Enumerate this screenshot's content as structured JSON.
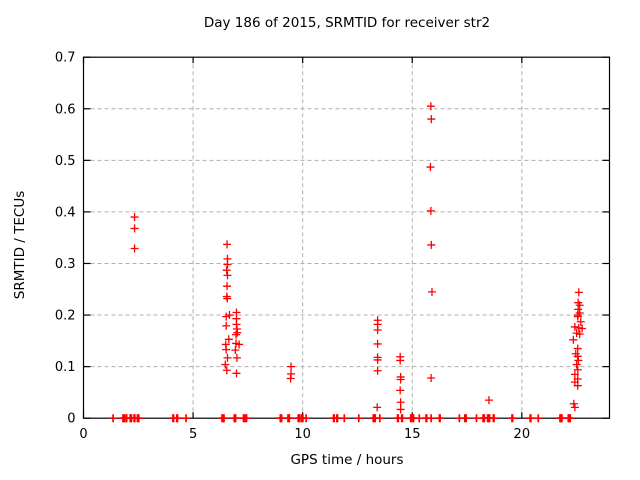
{
  "chart_data": {
    "type": "scatter",
    "title": "Day 186 of 2015, SRMTID for receiver str2",
    "xlabel": "GPS time / hours",
    "ylabel": "SRMTID / TECUs",
    "xlim": [
      0,
      24
    ],
    "ylim": [
      0,
      0.7
    ],
    "xticks": [
      0,
      5,
      10,
      15,
      20
    ],
    "yticks": [
      0,
      0.1,
      0.2,
      0.3,
      0.4,
      0.5,
      0.6,
      0.7
    ],
    "grid": true,
    "legend": "none",
    "marker": {
      "shape": "plus",
      "color": "#ff0000"
    },
    "grid_color": "#b0b0b0",
    "border_color": "#000000",
    "series": [
      {
        "name": "SRMTID",
        "points": [
          [
            2.33,
            0.39
          ],
          [
            2.33,
            0.368
          ],
          [
            2.33,
            0.329
          ],
          [
            6.55,
            0.337
          ],
          [
            6.57,
            0.309
          ],
          [
            6.57,
            0.298
          ],
          [
            6.53,
            0.287
          ],
          [
            6.57,
            0.277
          ],
          [
            6.55,
            0.256
          ],
          [
            6.54,
            0.236
          ],
          [
            6.56,
            0.232
          ],
          [
            6.66,
            0.2
          ],
          [
            6.51,
            0.197
          ],
          [
            6.51,
            0.179
          ],
          [
            6.63,
            0.153
          ],
          [
            6.49,
            0.143
          ],
          [
            6.51,
            0.133
          ],
          [
            6.57,
            0.117
          ],
          [
            6.47,
            0.104
          ],
          [
            6.54,
            0.093
          ],
          [
            6.98,
            0.205
          ],
          [
            6.98,
            0.193
          ],
          [
            6.98,
            0.182
          ],
          [
            7.0,
            0.173
          ],
          [
            7.02,
            0.166
          ],
          [
            6.96,
            0.162
          ],
          [
            6.96,
            0.145
          ],
          [
            7.1,
            0.143
          ],
          [
            6.93,
            0.132
          ],
          [
            7.0,
            0.117
          ],
          [
            6.98,
            0.087
          ],
          [
            9.47,
            0.1
          ],
          [
            9.47,
            0.086
          ],
          [
            9.45,
            0.077
          ],
          [
            13.42,
            0.19
          ],
          [
            13.42,
            0.182
          ],
          [
            13.42,
            0.171
          ],
          [
            13.42,
            0.144
          ],
          [
            13.42,
            0.118
          ],
          [
            13.42,
            0.113
          ],
          [
            13.42,
            0.092
          ],
          [
            13.4,
            0.021
          ],
          [
            14.45,
            0.119
          ],
          [
            14.45,
            0.112
          ],
          [
            14.47,
            0.08
          ],
          [
            14.47,
            0.075
          ],
          [
            14.45,
            0.054
          ],
          [
            14.47,
            0.031
          ],
          [
            14.47,
            0.017
          ],
          [
            15.85,
            0.605
          ],
          [
            15.87,
            0.58
          ],
          [
            15.83,
            0.487
          ],
          [
            15.85,
            0.402
          ],
          [
            15.87,
            0.336
          ],
          [
            15.9,
            0.245
          ],
          [
            15.86,
            0.078
          ],
          [
            18.5,
            0.035
          ],
          [
            22.6,
            0.244
          ],
          [
            22.57,
            0.224
          ],
          [
            22.64,
            0.219
          ],
          [
            22.57,
            0.211
          ],
          [
            22.64,
            0.204
          ],
          [
            22.55,
            0.2
          ],
          [
            22.56,
            0.197
          ],
          [
            22.69,
            0.187
          ],
          [
            22.42,
            0.177
          ],
          [
            22.6,
            0.175
          ],
          [
            22.75,
            0.174
          ],
          [
            22.5,
            0.165
          ],
          [
            22.64,
            0.163
          ],
          [
            22.35,
            0.152
          ],
          [
            22.55,
            0.135
          ],
          [
            22.46,
            0.125
          ],
          [
            22.55,
            0.12
          ],
          [
            22.58,
            0.112
          ],
          [
            22.5,
            0.104
          ],
          [
            22.55,
            0.094
          ],
          [
            22.42,
            0.085
          ],
          [
            22.55,
            0.076
          ],
          [
            22.42,
            0.07
          ],
          [
            22.55,
            0.063
          ],
          [
            22.37,
            0.028
          ],
          [
            22.42,
            0.021
          ]
        ],
        "zero_hours": [
          1.35,
          1.8,
          1.83,
          1.86,
          1.94,
          1.97,
          2.13,
          2.16,
          2.19,
          2.31,
          2.34,
          2.46,
          2.49,
          2.52,
          4.08,
          4.11,
          4.26,
          4.29,
          4.68,
          6.32,
          6.35,
          6.38,
          6.41,
          6.88,
          6.91,
          6.94,
          7.3,
          7.33,
          7.41,
          7.44,
          8.98,
          9.01,
          9.04,
          9.33,
          9.36,
          9.39,
          9.8,
          9.83,
          9.86,
          9.95,
          9.98,
          10.01,
          10.16,
          11.41,
          11.44,
          11.56,
          11.59,
          11.9,
          12.56,
          13.22,
          13.25,
          13.28,
          13.31,
          13.52,
          14.33,
          14.36,
          14.52,
          14.55,
          14.93,
          14.96,
          15.03,
          15.06,
          15.32,
          15.63,
          15.66,
          15.86,
          16.24,
          16.27,
          17.15,
          17.4,
          17.43,
          17.46,
          17.93,
          18.23,
          18.26,
          18.29,
          18.44,
          18.47,
          18.5,
          18.53,
          18.7,
          18.73,
          19.55,
          19.58,
          20.38,
          20.41,
          20.75,
          21.74,
          21.77,
          21.8,
          21.83,
          22.12,
          22.15,
          22.18,
          22.21
        ]
      }
    ]
  }
}
